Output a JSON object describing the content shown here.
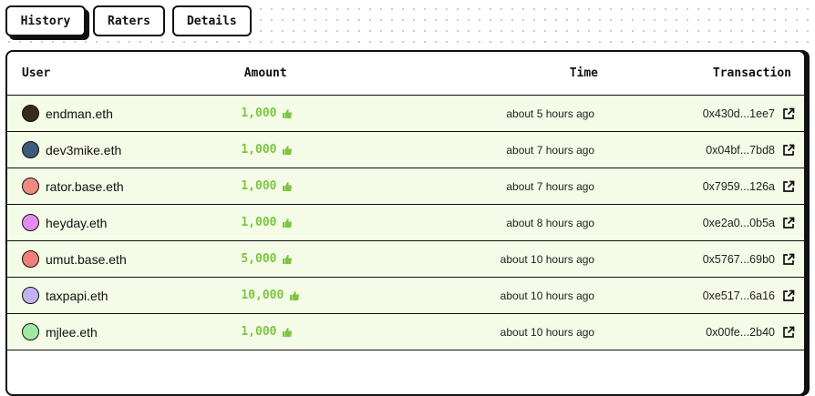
{
  "tabs": [
    {
      "label": "History",
      "active": true
    },
    {
      "label": "Raters"
    },
    {
      "label": "Details"
    }
  ],
  "table": {
    "headers": {
      "user": "User",
      "amount": "Amount",
      "time": "Time",
      "transaction": "Transaction"
    },
    "rows": [
      {
        "user": "endman.eth",
        "avatar_color": "#3a2a1a",
        "amount": "1,000",
        "time": "about 5 hours ago",
        "tx": "0x430d...1ee7"
      },
      {
        "user": "dev3mike.eth",
        "avatar_color": "#3b5c7a",
        "amount": "1,000",
        "time": "about 7 hours ago",
        "tx": "0x04bf...7bd8"
      },
      {
        "user": "rator.base.eth",
        "avatar_color": "#f08a80",
        "amount": "1,000",
        "time": "about 7 hours ago",
        "tx": "0x7959...126a"
      },
      {
        "user": "heyday.eth",
        "avatar_color": "#e58af0",
        "amount": "1,000",
        "time": "about 8 hours ago",
        "tx": "0xe2a0...0b5a"
      },
      {
        "user": "umut.base.eth",
        "avatar_color": "#ef7f78",
        "amount": "5,000",
        "time": "about 10 hours ago",
        "tx": "0x5767...69b0"
      },
      {
        "user": "taxpapi.eth",
        "avatar_color": "#c3b2f2",
        "amount": "10,000",
        "time": "about 10 hours ago",
        "tx": "0xe517...6a16"
      },
      {
        "user": "mjlee.eth",
        "avatar_color": "#9eeaa0",
        "amount": "1,000",
        "time": "about 10 hours ago",
        "tx": "0x00fe...2b40"
      }
    ]
  },
  "colors": {
    "amount": "#7cc640",
    "row_bg": "#f4fbe6"
  },
  "icons": {
    "amount": "thumbs-up-icon",
    "tx": "external-link-icon"
  }
}
